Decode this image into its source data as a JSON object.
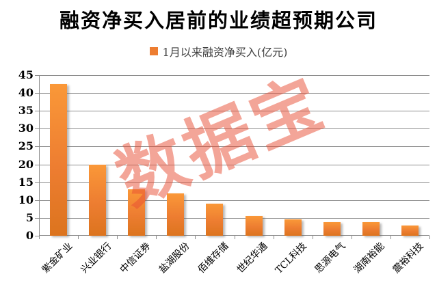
{
  "title": "融资净买入居前的业绩超预期公司",
  "legend": {
    "label": "1月以来融资净买入(亿元)",
    "marker_color": "#ED7D31"
  },
  "watermark": {
    "text": "数据宝",
    "color": "#E94E34"
  },
  "chart_data": {
    "type": "bar",
    "title": "融资净买入居前的业绩超预期公司",
    "legend_entries": [
      "1月以来融资净买入(亿元)"
    ],
    "legend_position": "top",
    "categories": [
      "紫金矿业",
      "兴业银行",
      "中信证券",
      "盐湖股份",
      "佰维存储",
      "世纪华通",
      "TCL科技",
      "思源电气",
      "湖南裕能",
      "震裕科技"
    ],
    "values": [
      42.6,
      20.0,
      13.0,
      11.8,
      9.0,
      5.5,
      4.6,
      3.9,
      3.9,
      2.9
    ],
    "xlabel": "",
    "ylabel": "",
    "ylim": [
      0,
      45
    ],
    "yticks": [
      0,
      5,
      10,
      15,
      20,
      25,
      30,
      35,
      40,
      45
    ],
    "grid": true,
    "xtick_rotation_deg": 45,
    "bar_color": "#ED7D31",
    "bar_gradient_top": "#FA9838",
    "bar_gradient_bottom": "#DC741E",
    "gridline_color": "#8C8C8C",
    "axis_text_color": "#000000"
  }
}
